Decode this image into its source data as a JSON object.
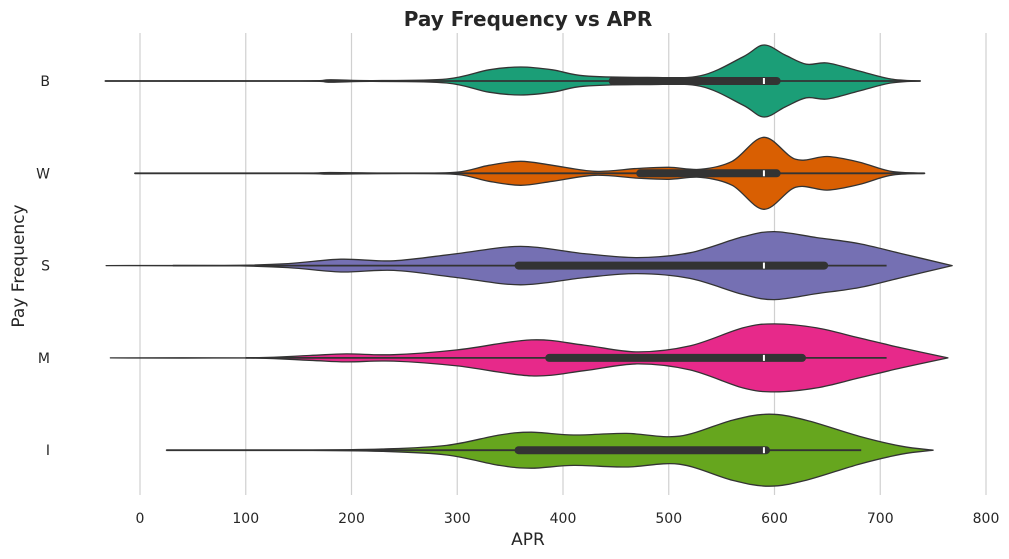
{
  "chart_data": {
    "type": "violin",
    "orientation": "horizontal",
    "title": "Pay Frequency vs APR",
    "xlabel": "APR",
    "ylabel": "Pay Frequency",
    "xlim": [
      -40,
      800
    ],
    "x_ticks": [
      0,
      100,
      200,
      300,
      400,
      500,
      600,
      700,
      800
    ],
    "grid": "vertical",
    "categories": [
      "B",
      "W",
      "S",
      "M",
      "I"
    ],
    "series": [
      {
        "category": "B",
        "color": "#1b9e77",
        "extent": [
          -33,
          738
        ],
        "whisker": [
          -33,
          738
        ],
        "box": [
          447,
          602
        ],
        "median": 590,
        "density": [
          [
            -33,
            0.0
          ],
          [
            150,
            0.0
          ],
          [
            180,
            0.03
          ],
          [
            220,
            0.01
          ],
          [
            290,
            0.05
          ],
          [
            330,
            0.28
          ],
          [
            360,
            0.35
          ],
          [
            390,
            0.28
          ],
          [
            420,
            0.13
          ],
          [
            480,
            0.09
          ],
          [
            530,
            0.13
          ],
          [
            570,
            0.6
          ],
          [
            590,
            0.9
          ],
          [
            610,
            0.65
          ],
          [
            630,
            0.42
          ],
          [
            650,
            0.45
          ],
          [
            680,
            0.25
          ],
          [
            710,
            0.05
          ],
          [
            738,
            0.0
          ]
        ]
      },
      {
        "category": "W",
        "color": "#d95f02",
        "extent": [
          -5,
          742
        ],
        "whisker": [
          -5,
          742
        ],
        "box": [
          473,
          602
        ],
        "median": 590,
        "density": [
          [
            -5,
            0.0
          ],
          [
            150,
            0.0
          ],
          [
            180,
            0.02
          ],
          [
            250,
            0.0
          ],
          [
            300,
            0.03
          ],
          [
            330,
            0.2
          ],
          [
            360,
            0.3
          ],
          [
            390,
            0.2
          ],
          [
            430,
            0.05
          ],
          [
            470,
            0.12
          ],
          [
            500,
            0.15
          ],
          [
            530,
            0.1
          ],
          [
            560,
            0.3
          ],
          [
            590,
            0.9
          ],
          [
            620,
            0.35
          ],
          [
            650,
            0.42
          ],
          [
            680,
            0.28
          ],
          [
            710,
            0.05
          ],
          [
            742,
            0.0
          ]
        ]
      },
      {
        "category": "S",
        "color": "#7570b3",
        "extent": [
          -32,
          768
        ],
        "whisker": [
          31,
          706
        ],
        "box": [
          358,
          647
        ],
        "median": 590,
        "density": [
          [
            -32,
            0.0
          ],
          [
            80,
            0.0
          ],
          [
            140,
            0.05
          ],
          [
            190,
            0.16
          ],
          [
            240,
            0.12
          ],
          [
            300,
            0.3
          ],
          [
            360,
            0.48
          ],
          [
            420,
            0.3
          ],
          [
            470,
            0.2
          ],
          [
            520,
            0.32
          ],
          [
            570,
            0.72
          ],
          [
            600,
            0.85
          ],
          [
            640,
            0.7
          ],
          [
            680,
            0.55
          ],
          [
            720,
            0.3
          ],
          [
            768,
            0.0
          ]
        ]
      },
      {
        "category": "M",
        "color": "#e7298a",
        "extent": [
          -28,
          764
        ],
        "whisker": [
          100,
          706
        ],
        "box": [
          387,
          626
        ],
        "median": 590,
        "density": [
          [
            -28,
            0.0
          ],
          [
            100,
            0.0
          ],
          [
            160,
            0.06
          ],
          [
            195,
            0.1
          ],
          [
            240,
            0.08
          ],
          [
            300,
            0.2
          ],
          [
            370,
            0.45
          ],
          [
            420,
            0.32
          ],
          [
            470,
            0.15
          ],
          [
            520,
            0.3
          ],
          [
            570,
            0.75
          ],
          [
            600,
            0.85
          ],
          [
            640,
            0.75
          ],
          [
            680,
            0.5
          ],
          [
            720,
            0.25
          ],
          [
            764,
            0.0
          ]
        ]
      },
      {
        "category": "I",
        "color": "#66a61e",
        "extent": [
          25,
          750
        ],
        "whisker": [
          25,
          682
        ],
        "box": [
          358,
          592
        ],
        "median": 590,
        "density": [
          [
            25,
            0.0
          ],
          [
            150,
            0.0
          ],
          [
            230,
            0.03
          ],
          [
            290,
            0.12
          ],
          [
            340,
            0.38
          ],
          [
            370,
            0.45
          ],
          [
            410,
            0.38
          ],
          [
            460,
            0.42
          ],
          [
            510,
            0.35
          ],
          [
            560,
            0.75
          ],
          [
            595,
            0.9
          ],
          [
            630,
            0.75
          ],
          [
            680,
            0.35
          ],
          [
            720,
            0.1
          ],
          [
            750,
            0.0
          ]
        ]
      }
    ]
  }
}
